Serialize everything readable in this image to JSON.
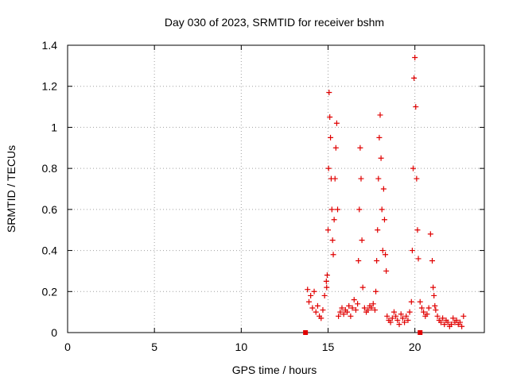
{
  "chart_data": {
    "type": "scatter",
    "title": "Day 030 of 2023, SRMTID for receiver bshm",
    "xlabel": "GPS time / hours",
    "ylabel": "SRMTID / TECUs",
    "xlim": [
      0,
      24
    ],
    "ylim": [
      0,
      1.4
    ],
    "xticks": [
      0,
      5,
      10,
      15,
      20
    ],
    "yticks": [
      0,
      0.2,
      0.4,
      0.6,
      0.8,
      1,
      1.2,
      1.4
    ],
    "xtick_labels": [
      "0",
      "5",
      "10",
      "15",
      "20"
    ],
    "ytick_labels": [
      "0",
      "0.2",
      "0.4",
      "0.6",
      "0.8",
      "1",
      "1.2",
      "1.4"
    ],
    "grid": true,
    "marker": "+",
    "color": "#e00000",
    "series": [
      {
        "name": "SRMTID",
        "x": [
          13.82,
          13.9,
          14.0,
          14.1,
          14.2,
          14.3,
          14.4,
          14.5,
          14.6,
          14.7,
          14.8,
          14.9,
          14.92,
          14.95,
          15.0,
          15.03,
          15.06,
          15.1,
          15.14,
          15.18,
          15.22,
          15.26,
          15.3,
          15.35,
          15.4,
          15.45,
          15.5,
          15.55,
          15.6,
          15.7,
          15.8,
          15.9,
          16.0,
          16.1,
          16.2,
          16.3,
          16.4,
          16.5,
          16.6,
          16.7,
          16.75,
          16.8,
          16.85,
          16.9,
          16.95,
          17.0,
          17.1,
          17.2,
          17.3,
          17.4,
          17.5,
          17.6,
          17.7,
          17.75,
          17.8,
          17.85,
          17.9,
          17.95,
          18.0,
          18.05,
          18.1,
          18.15,
          18.2,
          18.25,
          18.3,
          18.35,
          18.4,
          18.5,
          18.6,
          18.7,
          18.8,
          18.9,
          19.0,
          19.1,
          19.2,
          19.3,
          19.4,
          19.5,
          19.6,
          19.7,
          19.8,
          19.85,
          19.9,
          19.95,
          20.0,
          20.05,
          20.1,
          20.15,
          20.2,
          20.3,
          20.4,
          20.5,
          20.6,
          20.7,
          20.8,
          20.9,
          21.0,
          21.05,
          21.1,
          21.15,
          21.2,
          21.3,
          21.4,
          21.5,
          21.6,
          21.7,
          21.8,
          21.9,
          22.0,
          22.1,
          22.2,
          22.3,
          22.4,
          22.5,
          22.6,
          22.7,
          22.8
        ],
        "y": [
          0.21,
          0.15,
          0.18,
          0.12,
          0.2,
          0.1,
          0.13,
          0.08,
          0.07,
          0.11,
          0.18,
          0.25,
          0.22,
          0.28,
          0.5,
          0.8,
          1.17,
          1.05,
          0.95,
          0.75,
          0.6,
          0.45,
          0.38,
          0.55,
          0.75,
          0.9,
          1.02,
          0.6,
          0.08,
          0.1,
          0.12,
          0.09,
          0.11,
          0.1,
          0.13,
          0.08,
          0.12,
          0.16,
          0.11,
          0.14,
          0.35,
          0.6,
          0.9,
          0.75,
          0.45,
          0.22,
          0.12,
          0.1,
          0.11,
          0.13,
          0.12,
          0.14,
          0.11,
          0.2,
          0.35,
          0.5,
          0.75,
          0.95,
          1.06,
          0.85,
          0.6,
          0.4,
          0.7,
          0.55,
          0.38,
          0.3,
          0.08,
          0.06,
          0.05,
          0.07,
          0.1,
          0.08,
          0.06,
          0.04,
          0.09,
          0.07,
          0.05,
          0.08,
          0.06,
          0.1,
          0.15,
          0.4,
          0.8,
          1.24,
          1.34,
          1.1,
          0.75,
          0.5,
          0.36,
          0.15,
          0.12,
          0.1,
          0.08,
          0.09,
          0.12,
          0.48,
          0.35,
          0.22,
          0.18,
          0.13,
          0.11,
          0.08,
          0.06,
          0.05,
          0.07,
          0.04,
          0.06,
          0.05,
          0.03,
          0.04,
          0.07,
          0.05,
          0.06,
          0.04,
          0.05,
          0.03,
          0.08
        ]
      }
    ],
    "markers_square": {
      "x": [
        13.7,
        20.3
      ],
      "y": [
        0,
        0
      ]
    }
  }
}
